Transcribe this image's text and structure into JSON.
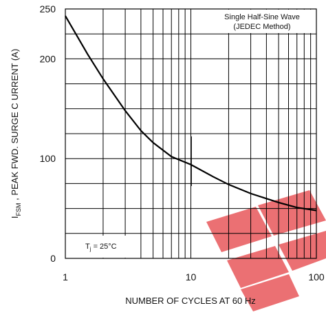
{
  "chart_data": {
    "type": "line",
    "title": "",
    "xlabel": "NUMBER   OF  CYCLES   AT 60  Hz",
    "ylabel_main": "I",
    "ylabel_sub": "FSM",
    "ylabel_rest": " , PEAK   FWD.  SURGE   C URRENT   (A)",
    "x_scale": "log",
    "xlim": [
      1,
      100
    ],
    "ylim": [
      0,
      250
    ],
    "x_ticks": [
      1,
      10,
      100
    ],
    "x_tick_labels": [
      "1",
      "10",
      "100"
    ],
    "y_ticks": [
      0,
      100,
      200,
      250
    ],
    "y_tick_labels": [
      "0",
      "100",
      "200",
      "250"
    ],
    "grid": true,
    "series": [
      {
        "x": [
          1,
          1.5,
          2,
          3,
          4,
          5,
          7,
          10,
          15,
          20,
          30,
          50,
          70,
          100
        ],
        "y": [
          243,
          205,
          180,
          148,
          128,
          116,
          102,
          94,
          82,
          74,
          65,
          56,
          51,
          48
        ]
      }
    ],
    "annotations": {
      "legend_line1": "Single  Half-Sine  Wave",
      "legend_line2": "(JEDEC    Method)",
      "legend_position": "top-right",
      "temp_main": "T",
      "temp_sub": "j",
      "temp_rest": " = 25°C",
      "temp_position": "bottom-left"
    }
  }
}
